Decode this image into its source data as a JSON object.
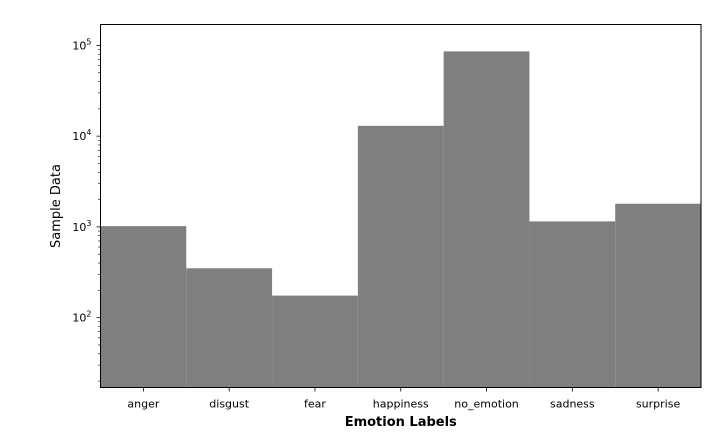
{
  "chart_data": {
    "type": "bar",
    "title": "",
    "xlabel": "Emotion Labels",
    "ylabel": "Sample Data",
    "categories": [
      "anger",
      "disgust",
      "fear",
      "happiness",
      "no_emotion",
      "sadness",
      "surprise"
    ],
    "values": [
      1020,
      350,
      175,
      13000,
      86000,
      1150,
      1800
    ],
    "ylog": true,
    "ylim": [
      17,
      170000
    ],
    "yticks": [
      {
        "value": 100,
        "base": "10",
        "exp": "2"
      },
      {
        "value": 1000,
        "base": "10",
        "exp": "3"
      },
      {
        "value": 10000,
        "base": "10",
        "exp": "4"
      },
      {
        "value": 100000,
        "base": "10",
        "exp": "5"
      }
    ],
    "bar_color": "#7f7f7f",
    "bar_width": 1.0,
    "grid": false,
    "legend": "none"
  }
}
